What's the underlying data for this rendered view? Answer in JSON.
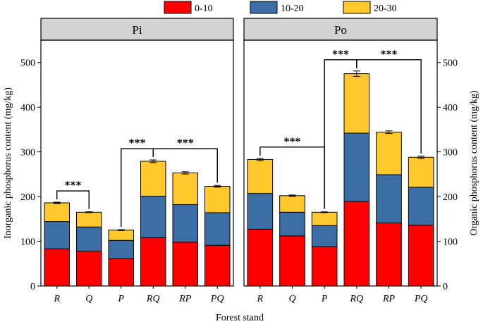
{
  "chart_data": {
    "type": "bar",
    "stacked": true,
    "title": "",
    "xlabel": "Forest stand",
    "ylabel_left": "Inorganic phosphorus content (mg/kg)",
    "ylabel_right": "Organic phosphorus content (mg/kg)",
    "ylim": [
      0,
      550
    ],
    "yticks": [
      0,
      100,
      200,
      300,
      400,
      500
    ],
    "categories": [
      "R",
      "Q",
      "P",
      "RQ",
      "RP",
      "PQ"
    ],
    "legend": {
      "position": "top",
      "items": [
        {
          "label": "0-10",
          "color": "#ff0000"
        },
        {
          "label": "10-20",
          "color": "#3c6ea6"
        },
        {
          "label": "20-30",
          "color": "#ffc92e"
        }
      ]
    },
    "panels": [
      {
        "title": "Pi",
        "series": [
          {
            "name": "0-10",
            "values": [
              83,
              78,
              61,
              108,
              98,
              91
            ]
          },
          {
            "name": "10-20",
            "values": [
              61,
              54,
              41,
              93,
              84,
              73
            ]
          },
          {
            "name": "20-30",
            "values": [
              42,
              33,
              23,
              78,
              71,
              59
            ]
          }
        ],
        "error": [
          1.5,
          1,
          1,
          3,
          2.5,
          2
        ],
        "significance": [
          {
            "from": "R",
            "to": "Q",
            "label": "***"
          },
          {
            "from": "P",
            "to": "RQ",
            "label": "***"
          },
          {
            "from": "RQ",
            "to": "PQ",
            "label": "***"
          }
        ]
      },
      {
        "title": "Po",
        "series": [
          {
            "name": "0-10",
            "values": [
              127,
              112,
              88,
              189,
              141,
              136
            ]
          },
          {
            "name": "10-20",
            "values": [
              80,
              53,
              47,
              153,
              108,
              85
            ]
          },
          {
            "name": "20-30",
            "values": [
              76,
              37,
              30,
              133,
              95,
              67
            ]
          }
        ],
        "error": [
          2.5,
          1.5,
          1,
          6,
          3,
          2.5
        ],
        "significance": [
          {
            "from": "R",
            "to": "P",
            "label": "***"
          },
          {
            "from": "P",
            "to": "RQ",
            "label": "***"
          },
          {
            "from": "RQ",
            "to": "PQ",
            "label": "***"
          }
        ]
      }
    ]
  }
}
